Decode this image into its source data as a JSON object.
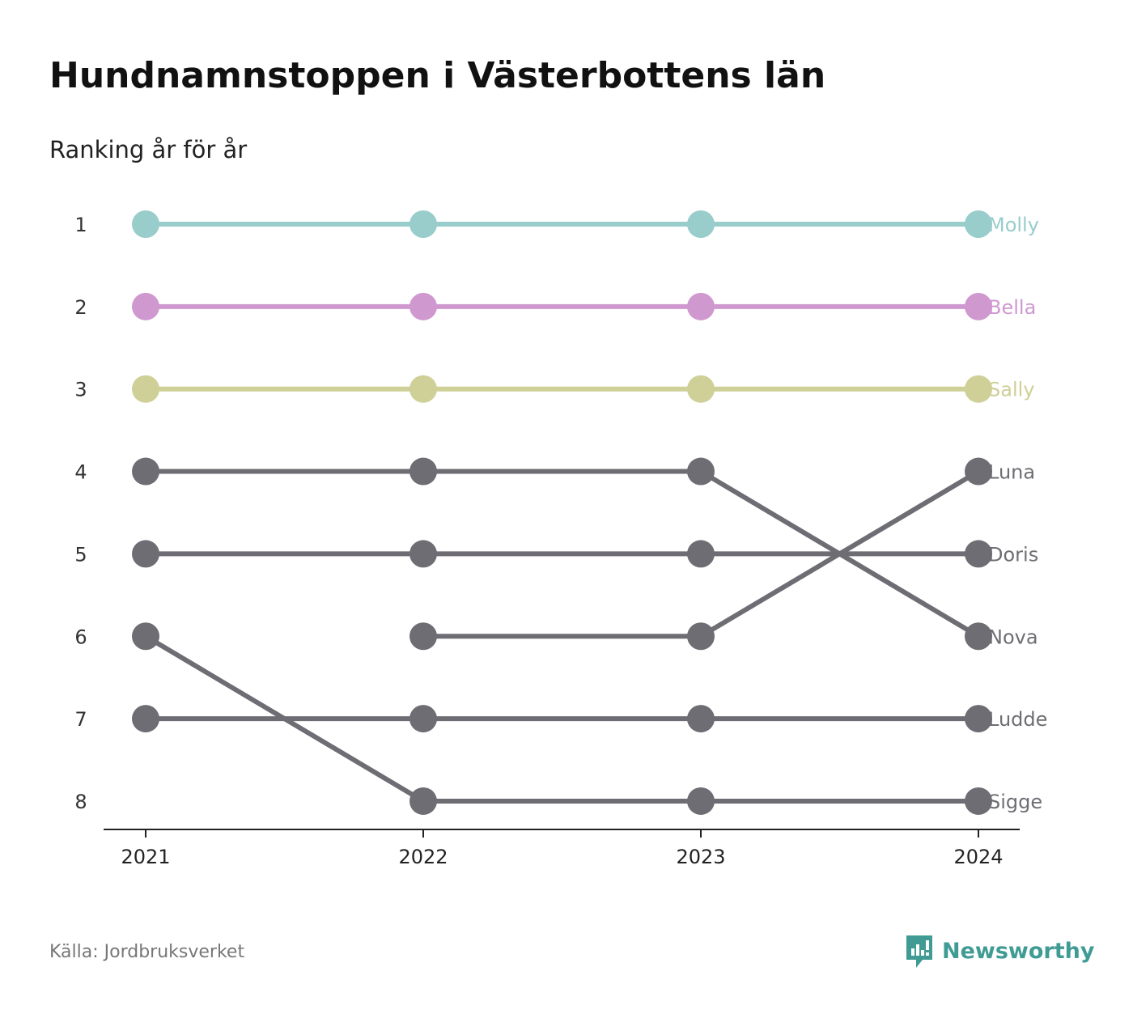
{
  "title": "Hundnamnstoppen i Västerbottens län",
  "subtitle": "Ranking år för år",
  "source": "Källa: Jordbruksverket",
  "brand": {
    "name": "Newsworthy",
    "icon": "newsworthy-logo-icon",
    "color": "#3f9b94"
  },
  "chart_data": {
    "type": "line",
    "chart_kind": "bump",
    "x": [
      "2021",
      "2022",
      "2023",
      "2024"
    ],
    "y_ticks": [
      "1",
      "2",
      "3",
      "4",
      "5",
      "6",
      "7",
      "8"
    ],
    "ylim": [
      1,
      8
    ],
    "y_inverted": true,
    "grid": false,
    "series": [
      {
        "name": "Molly",
        "color": "#98cdcb",
        "values": [
          1,
          1,
          1,
          1
        ]
      },
      {
        "name": "Bella",
        "color": "#cf98cf",
        "values": [
          2,
          2,
          2,
          2
        ]
      },
      {
        "name": "Sally",
        "color": "#cfcf98",
        "values": [
          3,
          3,
          3,
          3
        ]
      },
      {
        "name": "Luna",
        "color": "#6e6d73",
        "values": [
          null,
          6,
          6,
          4
        ]
      },
      {
        "name": "Doris",
        "color": "#6e6d73",
        "values": [
          5,
          5,
          5,
          5
        ]
      },
      {
        "name": "Nova",
        "color": "#6e6d73",
        "values": [
          4,
          4,
          4,
          6
        ]
      },
      {
        "name": "Ludde",
        "color": "#6e6d73",
        "values": [
          7,
          7,
          7,
          7
        ]
      },
      {
        "name": "Sigge",
        "color": "#6e6d73",
        "values": [
          6,
          8,
          8,
          8
        ]
      }
    ]
  }
}
